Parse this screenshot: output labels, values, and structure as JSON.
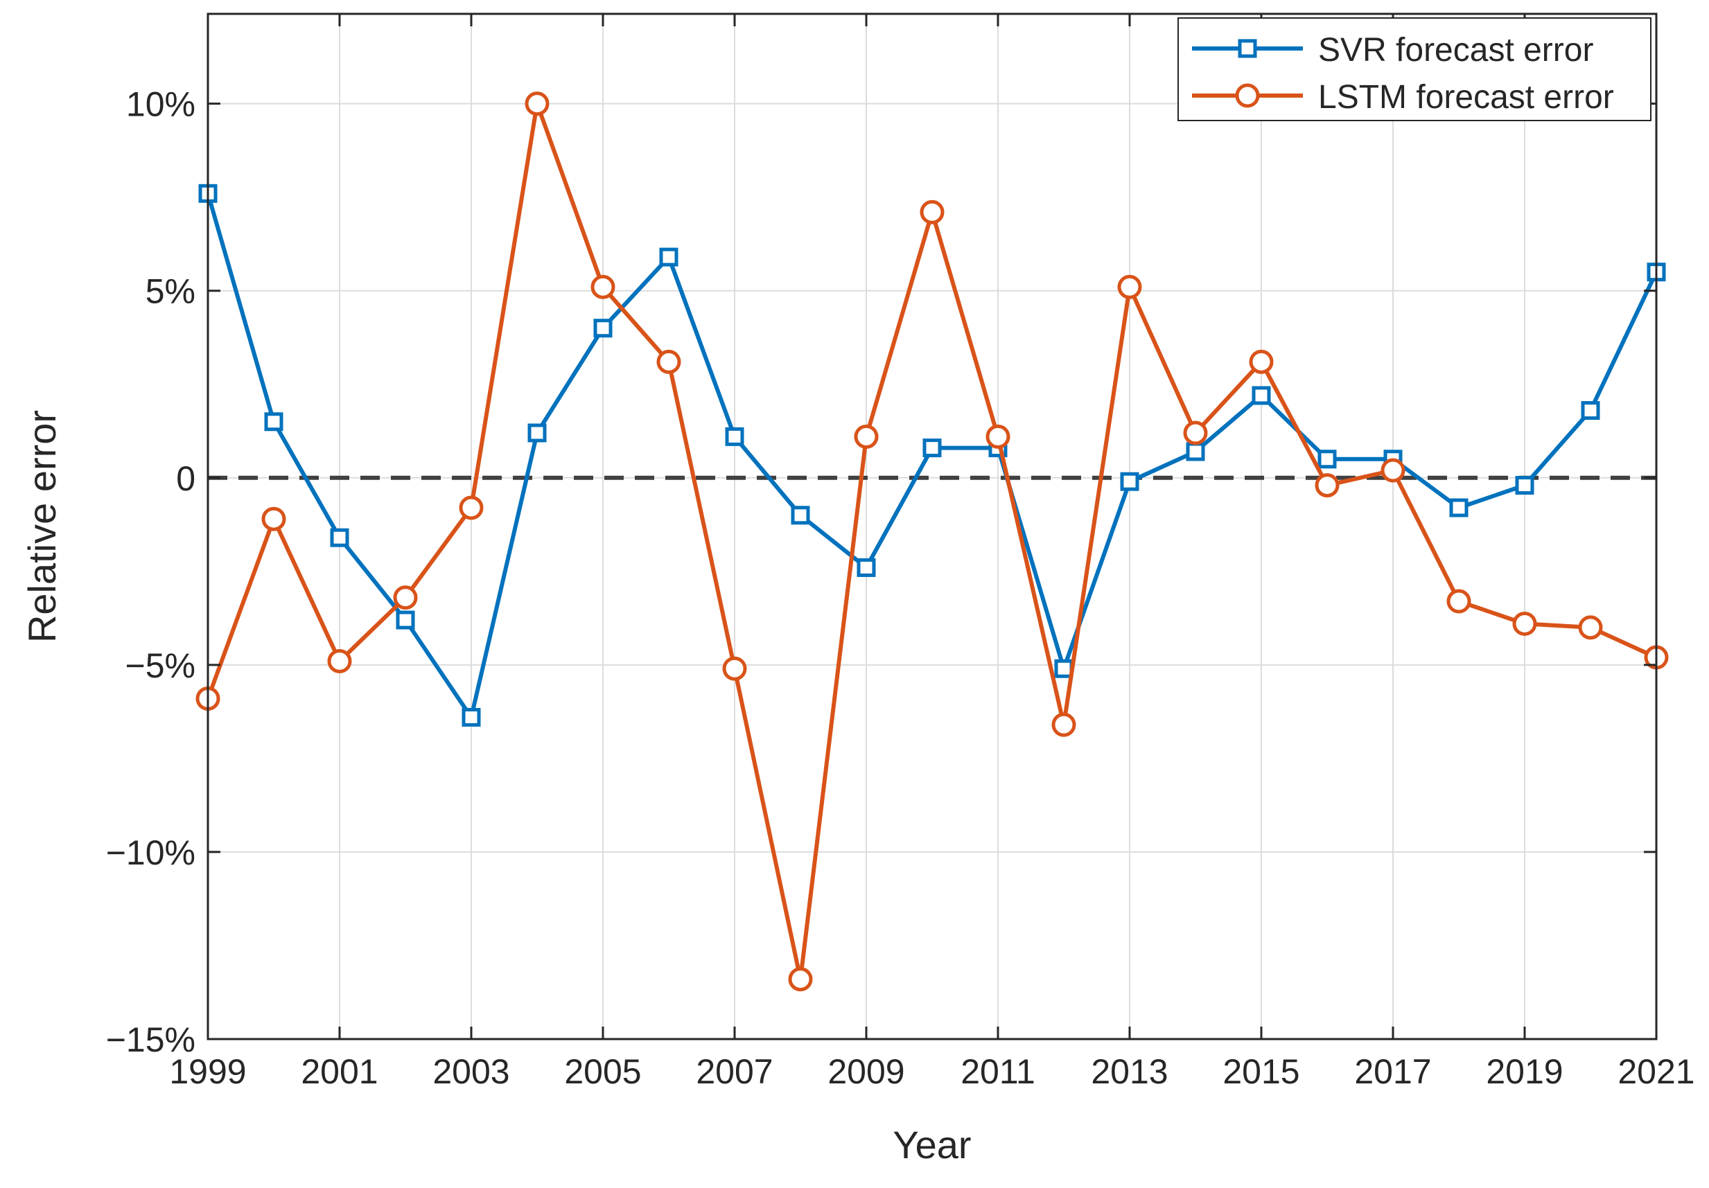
{
  "chart_data": {
    "type": "line",
    "title": "",
    "xlabel": "Year",
    "ylabel": "Relative error",
    "xlim": [
      1999,
      2021
    ],
    "ylim": [
      -15,
      12.4
    ],
    "x_ticks": [
      1999,
      2001,
      2003,
      2005,
      2007,
      2009,
      2011,
      2013,
      2015,
      2017,
      2019,
      2021
    ],
    "x_tick_labels": [
      "1999",
      "2001",
      "2003",
      "2005",
      "2007",
      "2009",
      "2011",
      "2013",
      "2015",
      "2017",
      "2019",
      "2021"
    ],
    "y_ticks": [
      -15,
      -10,
      -5,
      0,
      5,
      10
    ],
    "y_tick_labels": [
      "−15%",
      "−10%",
      "−5%",
      "0",
      "5%",
      "10%"
    ],
    "grid": true,
    "reference_line": {
      "y": 0,
      "style": "dashed",
      "color": "#404040"
    },
    "legend_position": "top-right",
    "x": [
      1999,
      2000,
      2001,
      2002,
      2003,
      2004,
      2005,
      2006,
      2007,
      2008,
      2009,
      2010,
      2011,
      2012,
      2013,
      2014,
      2015,
      2016,
      2017,
      2018,
      2019,
      2020,
      2021
    ],
    "series": [
      {
        "name": "SVR forecast error",
        "color": "#0072BD",
        "marker": "square",
        "values": [
          7.6,
          1.5,
          -1.6,
          -3.8,
          -6.4,
          1.2,
          4.0,
          5.9,
          1.1,
          -1.0,
          -2.4,
          0.8,
          0.8,
          -5.1,
          -0.1,
          0.7,
          2.2,
          0.5,
          0.5,
          -0.8,
          -0.2,
          1.8,
          5.5
        ]
      },
      {
        "name": "LSTM forecast error",
        "color": "#D95319",
        "marker": "circle",
        "values": [
          -5.9,
          -1.1,
          -4.9,
          -3.2,
          -0.8,
          10.0,
          5.1,
          3.1,
          -5.1,
          -13.4,
          1.1,
          7.1,
          1.1,
          -6.6,
          5.1,
          1.2,
          3.1,
          -0.2,
          0.2,
          -3.3,
          -3.9,
          -4.0,
          -4.8
        ]
      }
    ]
  }
}
